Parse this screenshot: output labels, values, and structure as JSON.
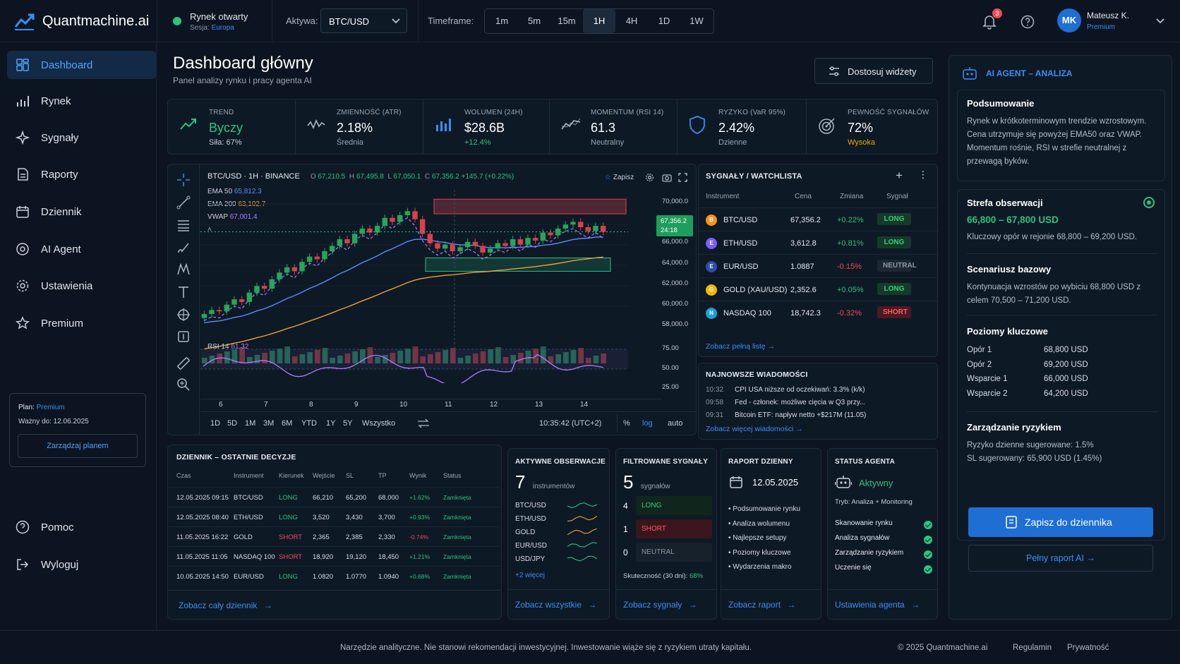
{
  "brand": {
    "name": "Quantmachine.ai"
  },
  "market": {
    "status": "Rynek otwarty",
    "session_label": "Sesja:",
    "session": "Europa"
  },
  "asset": {
    "label": "Aktywa:",
    "value": "BTC/USD"
  },
  "timeframe": {
    "label": "Timeframe:",
    "options": [
      "1m",
      "5m",
      "15m",
      "1H",
      "4H",
      "1D",
      "1W"
    ],
    "active": "1H"
  },
  "user": {
    "notifications": "3",
    "initials": "MK",
    "name": "Mateusz K.",
    "plan": "Premium"
  },
  "sidebar": {
    "items": [
      {
        "label": "Dashboard",
        "icon": "dashboard-icon"
      },
      {
        "label": "Rynek",
        "icon": "bar-chart-icon"
      },
      {
        "label": "Sygnały",
        "icon": "signal-icon"
      },
      {
        "label": "Raporty",
        "icon": "report-icon"
      },
      {
        "label": "Dziennik",
        "icon": "calendar-icon"
      },
      {
        "label": "AI Agent",
        "icon": "ai-agent-icon"
      },
      {
        "label": "Ustawienia",
        "icon": "gear-icon"
      },
      {
        "label": "Premium",
        "icon": "star-icon"
      }
    ],
    "plan": {
      "label": "Plan:",
      "value": "Premium",
      "valid_label": "Ważny do:",
      "valid": "12.06.2025",
      "button": "Zarządzaj planem"
    },
    "help": "Pomoc",
    "logout": "Wyloguj"
  },
  "page": {
    "title": "Dashboard główny",
    "subtitle": "Panel analizy rynku i pracy agenta AI",
    "customize": "Dostosuj widżety"
  },
  "kpis": [
    {
      "label": "TREND",
      "value": "Byczy",
      "sub": "Siła: 67%",
      "color": "#2ec27e"
    },
    {
      "label": "ZMIENNOŚĆ (ATR)",
      "value": "2.18%",
      "sub": "Średnia"
    },
    {
      "label": "WOLUMEN (24H)",
      "value": "$28.6B",
      "sub": "+12.4%"
    },
    {
      "label": "MOMENTUM (RSI 14)",
      "value": "61.3",
      "sub": "Neutralny"
    },
    {
      "label": "RYZYKO (VaR 95%)",
      "value": "2.42%",
      "sub": "Dzienne"
    },
    {
      "label": "PEWNOŚĆ SYGNAŁÓW",
      "value": "72%",
      "sub": "Wysoka"
    }
  ],
  "chart": {
    "symbol": "BTC/USD · 1H · BINANCE",
    "o_label": "O",
    "o": "67,210.5",
    "h_label": "H",
    "h": "67,495.8",
    "l_label": "L",
    "l": "67,050.1",
    "c_label": "C",
    "c": "67,356.2",
    "chg": "+145.7 (+0.22%)",
    "save": "Zapisz",
    "ema50_label": "EMA 50",
    "ema50": "65,812.3",
    "ema200_label": "EMA 200",
    "ema200": "63,102.7",
    "vwap_label": "VWAP",
    "vwap": "67,001.4",
    "price_tag": "67,356.2",
    "countdown": "24:18",
    "y_ticks": [
      "70,000.0",
      "66,000.0",
      "64,000.0",
      "62,000.0",
      "60,000.0",
      "58,000.0"
    ],
    "x_ticks": [
      "6",
      "7",
      "8",
      "9",
      "10",
      "11",
      "12",
      "13",
      "14"
    ],
    "rsi_label": "RSI 14",
    "rsi_value": "61.32",
    "rsi_ticks": [
      "75.00",
      "50.00",
      "25.00"
    ],
    "ranges": [
      "1D",
      "5D",
      "1M",
      "3M",
      "6M",
      "YTD",
      "1Y",
      "5Y",
      "Wszystko"
    ],
    "clock": "10:35:42 (UTC+2)",
    "pct": "%",
    "log": "log",
    "auto": "auto"
  },
  "chart_data": {
    "type": "candlestick",
    "title": "BTC/USD · 1H · BINANCE",
    "x_ticks": [
      "6",
      "7",
      "8",
      "9",
      "10",
      "11",
      "12",
      "13",
      "14"
    ],
    "ylim": [
      57500,
      70500
    ],
    "series": [
      {
        "name": "EMA 50",
        "last": 65812.3,
        "color": "#5b8cff"
      },
      {
        "name": "EMA 200",
        "last": 63102.7,
        "color": "#e8a13a"
      },
      {
        "name": "VWAP",
        "last": 67001.4,
        "color": "#b07cff"
      }
    ],
    "close_approx": [
      61200,
      61500,
      61400,
      61900,
      62300,
      62100,
      62800,
      63300,
      63100,
      63800,
      64300,
      64700,
      64400,
      65100,
      65500,
      65300,
      65900,
      66300,
      66800,
      66500,
      67200,
      67600,
      67300,
      67800,
      68400,
      68100,
      68600,
      68900,
      68300,
      67200,
      66500,
      66100,
      66400,
      65900,
      66200,
      66600,
      66300,
      65800,
      66100,
      66500,
      66300,
      66800,
      66400,
      66900,
      66700,
      67300,
      67100,
      67600,
      67900,
      68100,
      67700,
      67400,
      67800,
      67356.2
    ],
    "rsi": {
      "name": "RSI 14",
      "last": 61.32,
      "ylim": [
        25,
        75
      ]
    }
  },
  "signals": {
    "title": "SYGNAŁY / WATCHLISTA",
    "cols": [
      "Instrument",
      "Cena",
      "Zmiana",
      "Sygnał"
    ],
    "rows": [
      {
        "name": "BTC/USD",
        "price": "67,356.2",
        "chg": "+0.22%",
        "sig": "LONG",
        "icon": "bitcoin-icon",
        "color": "#f7931a"
      },
      {
        "name": "ETH/USD",
        "price": "3,612.8",
        "chg": "+0.81%",
        "sig": "LONG",
        "icon": "ethereum-icon",
        "color": "#7b5cff"
      },
      {
        "name": "EUR/USD",
        "price": "1.0887",
        "chg": "-0.15%",
        "sig": "NEUTRAL",
        "icon": "flag-icon",
        "color": "#2b4fa8"
      },
      {
        "name": "GOLD (XAU/USD)",
        "price": "2,352.6",
        "chg": "+0.05%",
        "sig": "LONG",
        "icon": "gold-icon",
        "color": "#f2b705"
      },
      {
        "name": "NASDAQ 100",
        "price": "18,742.3",
        "chg": "-0.32%",
        "sig": "SHORT",
        "icon": "nasdaq-icon",
        "color": "#1aa3d6"
      }
    ],
    "link": "Zobacz pełną listę"
  },
  "news": {
    "title": "NAJNOWSZE WIADOMOŚCI",
    "items": [
      {
        "time": "10:32",
        "text": "CPI USA niższe od oczekiwań: 3.3% (k/k)"
      },
      {
        "time": "09:58",
        "text": "Fed - członek: możliwe cięcia w Q3 przy..."
      },
      {
        "time": "09:31",
        "text": "Bitcoin ETF: napływ netto +$217M (11.05)"
      }
    ],
    "link": "Zobacz więcej wiadomości"
  },
  "journal": {
    "title": "DZIENNIK – OSTATNIE DECYZJE",
    "cols": [
      "Czas",
      "Instrument",
      "Kierunek",
      "Wejście",
      "SL",
      "TP",
      "Wynik",
      "Status"
    ],
    "rows": [
      [
        "12.05.2025 09:15",
        "BTC/USD",
        "LONG",
        "66,210",
        "65,200",
        "68,000",
        "+1.62%",
        "Zamknięta"
      ],
      [
        "12.05.2025 08:40",
        "ETH/USD",
        "LONG",
        "3,520",
        "3,430",
        "3,700",
        "+0.93%",
        "Zamknięta"
      ],
      [
        "11.05.2025 16:22",
        "GOLD",
        "SHORT",
        "2,365",
        "2,385",
        "2,330",
        "-0.74%",
        "Zamknięta"
      ],
      [
        "11.05.2025 11:05",
        "NASDAQ 100",
        "SHORT",
        "18,920",
        "19,120",
        "18,450",
        "+1.21%",
        "Zamknięta"
      ],
      [
        "10.05.2025 14:50",
        "EUR/USD",
        "LONG",
        "1.0820",
        "1.0770",
        "1.0940",
        "+0.68%",
        "Zamknięta"
      ]
    ],
    "link": "Zobacz cały dziennik"
  },
  "observations": {
    "title": "AKTYWNE OBSERWACJE",
    "count": "7",
    "unit": "instrumentów",
    "items": [
      "BTC/USD",
      "ETH/USD",
      "GOLD",
      "EUR/USD",
      "USD/JPY"
    ],
    "more": "+2 więcej",
    "link": "Zobacz wszystkie"
  },
  "filtered": {
    "title": "FILTROWANE SYGNAŁY",
    "count": "5",
    "unit": "sygnałów",
    "rows": [
      {
        "n": "4",
        "label": "LONG"
      },
      {
        "n": "1",
        "label": "SHORT"
      },
      {
        "n": "0",
        "label": "NEUTRAL"
      }
    ],
    "eff_label": "Skuteczność (30 dni):",
    "eff": "68%",
    "link": "Zobacz sygnały"
  },
  "daily": {
    "title": "RAPORT DZIENNY",
    "date": "12.05.2025",
    "items": [
      "Podsumowanie rynku",
      "Analiza wolumenu",
      "Najlepsze setupy",
      "Poziomy kluczowe",
      "Wydarzenia makro"
    ],
    "link": "Zobacz raport"
  },
  "agent_status": {
    "title": "STATUS AGENTA",
    "status": "Aktywny",
    "mode": "Tryb: Analiza + Monitoring",
    "tasks": [
      "Skanowanie rynku",
      "Analiza sygnałów",
      "Zarządzanie ryzykiem",
      "Uczenie się"
    ],
    "link": "Ustawienia agenta"
  },
  "ai": {
    "title": "AI AGENT – ANALIZA",
    "summary_h": "Podsumowanie",
    "summary": "Rynek w krótkoterminowym trendzie wzrostowym. Cena utrzymuje się powyżej EMA50 oraz VWAP. Momentum rośnie, RSI w strefie neutralnej z przewagą byków.",
    "zone_h": "Strefa obserwacji",
    "zone": "66,800 – 67,800 USD",
    "zone_t": "Kluczowy opór w rejonie 68,800 – 69,200 USD.",
    "base_h": "Scenariusz bazowy",
    "base_t": "Kontynuacja wzrostów po wybiciu 68,800 USD z celem 70,500 – 71,200 USD.",
    "levels_h": "Poziomy kluczowe",
    "levels": [
      {
        "k": "Opór 1",
        "v": "68,800 USD"
      },
      {
        "k": "Opór 2",
        "v": "69,200 USD"
      },
      {
        "k": "Wsparcie 1",
        "v": "66,000 USD"
      },
      {
        "k": "Wsparcie 2",
        "v": "64,200 USD"
      }
    ],
    "risk_h": "Zarządzanie ryzykiem",
    "risk1": "Ryzyko dzienne sugerowane: 1.5%",
    "risk2": "SL sugerowany: 65,900 USD (1.45%)",
    "save_btn": "Zapisz do dziennika",
    "report_btn": "Pełny raport AI"
  },
  "footer": {
    "disclaimer": "Narzędzie analityczne. Nie stanowi rekomendacji inwestycyjnej. Inwestowanie wiąże się z ryzykiem utraty kapitału.",
    "copyright": "© 2025 Quantmachine.ai",
    "terms": "Regulamin",
    "privacy": "Prywatność"
  },
  "colors": {
    "bg": "#0b1420",
    "panel": "#0e1926",
    "accent": "#3b8ff5",
    "green": "#2ec27e",
    "red": "#ef4b55"
  }
}
